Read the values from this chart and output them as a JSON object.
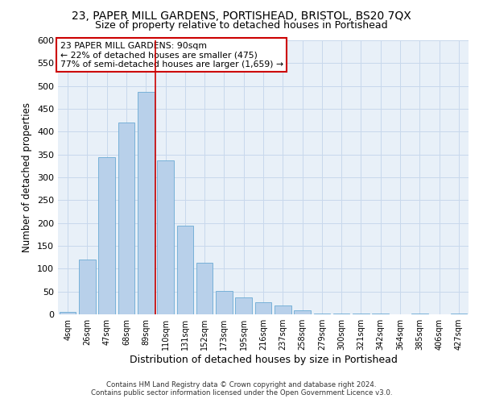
{
  "title": "23, PAPER MILL GARDENS, PORTISHEAD, BRISTOL, BS20 7QX",
  "subtitle": "Size of property relative to detached houses in Portishead",
  "xlabel": "Distribution of detached houses by size in Portishead",
  "ylabel": "Number of detached properties",
  "categories": [
    "4sqm",
    "26sqm",
    "47sqm",
    "68sqm",
    "89sqm",
    "110sqm",
    "131sqm",
    "152sqm",
    "173sqm",
    "195sqm",
    "216sqm",
    "237sqm",
    "258sqm",
    "279sqm",
    "300sqm",
    "321sqm",
    "342sqm",
    "364sqm",
    "385sqm",
    "406sqm",
    "427sqm"
  ],
  "values": [
    5,
    120,
    345,
    420,
    487,
    337,
    195,
    113,
    51,
    37,
    26,
    19,
    8,
    2,
    1,
    2,
    1,
    0,
    1,
    0,
    1
  ],
  "bar_color": "#b8d0ea",
  "bar_edge_color": "#6aaad4",
  "annotation_title": "23 PAPER MILL GARDENS: 90sqm",
  "annotation_line1": "← 22% of detached houses are smaller (475)",
  "annotation_line2": "77% of semi-detached houses are larger (1,659) →",
  "annotation_box_color": "#ffffff",
  "annotation_box_edge": "#cc0000",
  "vline_color": "#cc0000",
  "vline_x_index": 4.5,
  "ylim": [
    0,
    600
  ],
  "yticks": [
    0,
    50,
    100,
    150,
    200,
    250,
    300,
    350,
    400,
    450,
    500,
    550,
    600
  ],
  "grid_color": "#c8d8ec",
  "bg_color": "#e8f0f8",
  "footer1": "Contains HM Land Registry data © Crown copyright and database right 2024.",
  "footer2": "Contains public sector information licensed under the Open Government Licence v3.0.",
  "title_fontsize": 10,
  "subtitle_fontsize": 9,
  "xlabel_fontsize": 9,
  "ylabel_fontsize": 8.5
}
